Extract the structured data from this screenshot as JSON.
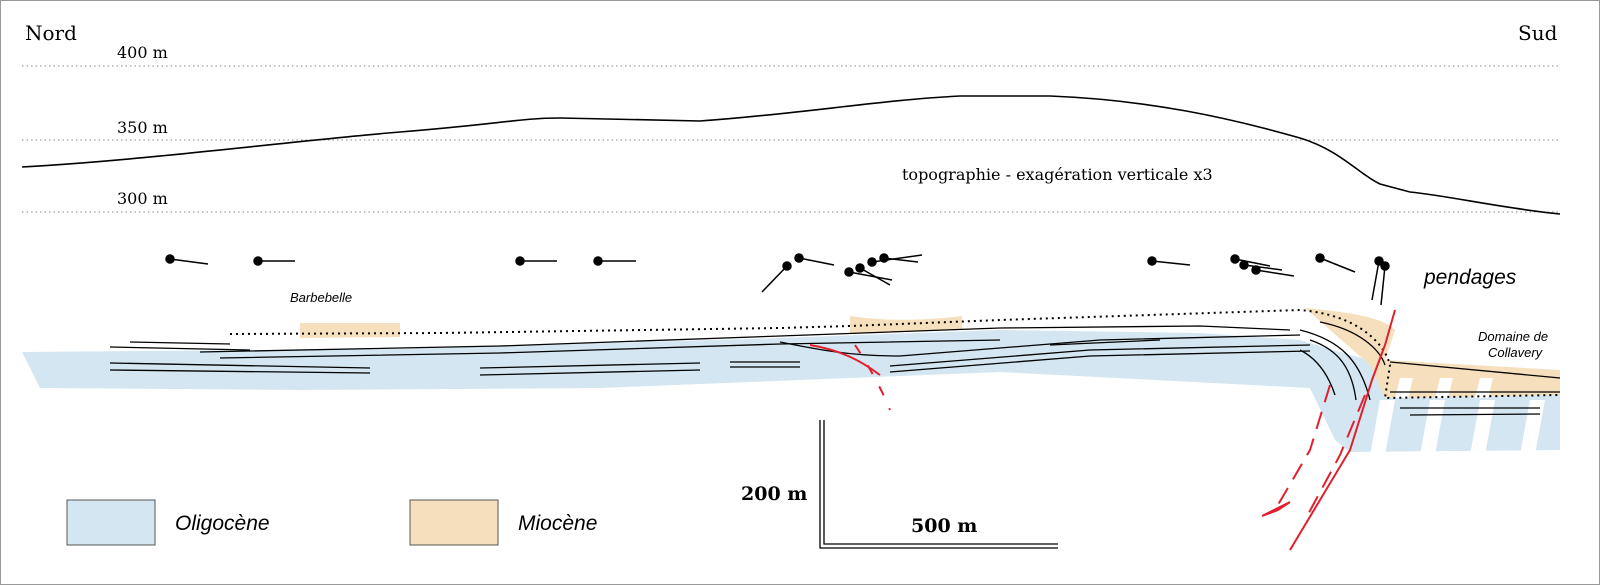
{
  "header": {
    "left": "Nord",
    "right": "Sud"
  },
  "elevations": [
    {
      "label": "400 m"
    },
    {
      "label": "350 m"
    },
    {
      "label": "300 m"
    }
  ],
  "topography_label": "topographie - exagération verticale x3",
  "dips_label": "pendages",
  "places": {
    "barbebelle": "Barbebelle",
    "domaine": {
      "line1": "Domaine de",
      "line2": "Collavery"
    }
  },
  "legend": [
    {
      "label": "Oligocène"
    },
    {
      "label": "Miocène"
    }
  ],
  "scale": {
    "vertical": "200 m",
    "horizontal": "500 m"
  }
}
